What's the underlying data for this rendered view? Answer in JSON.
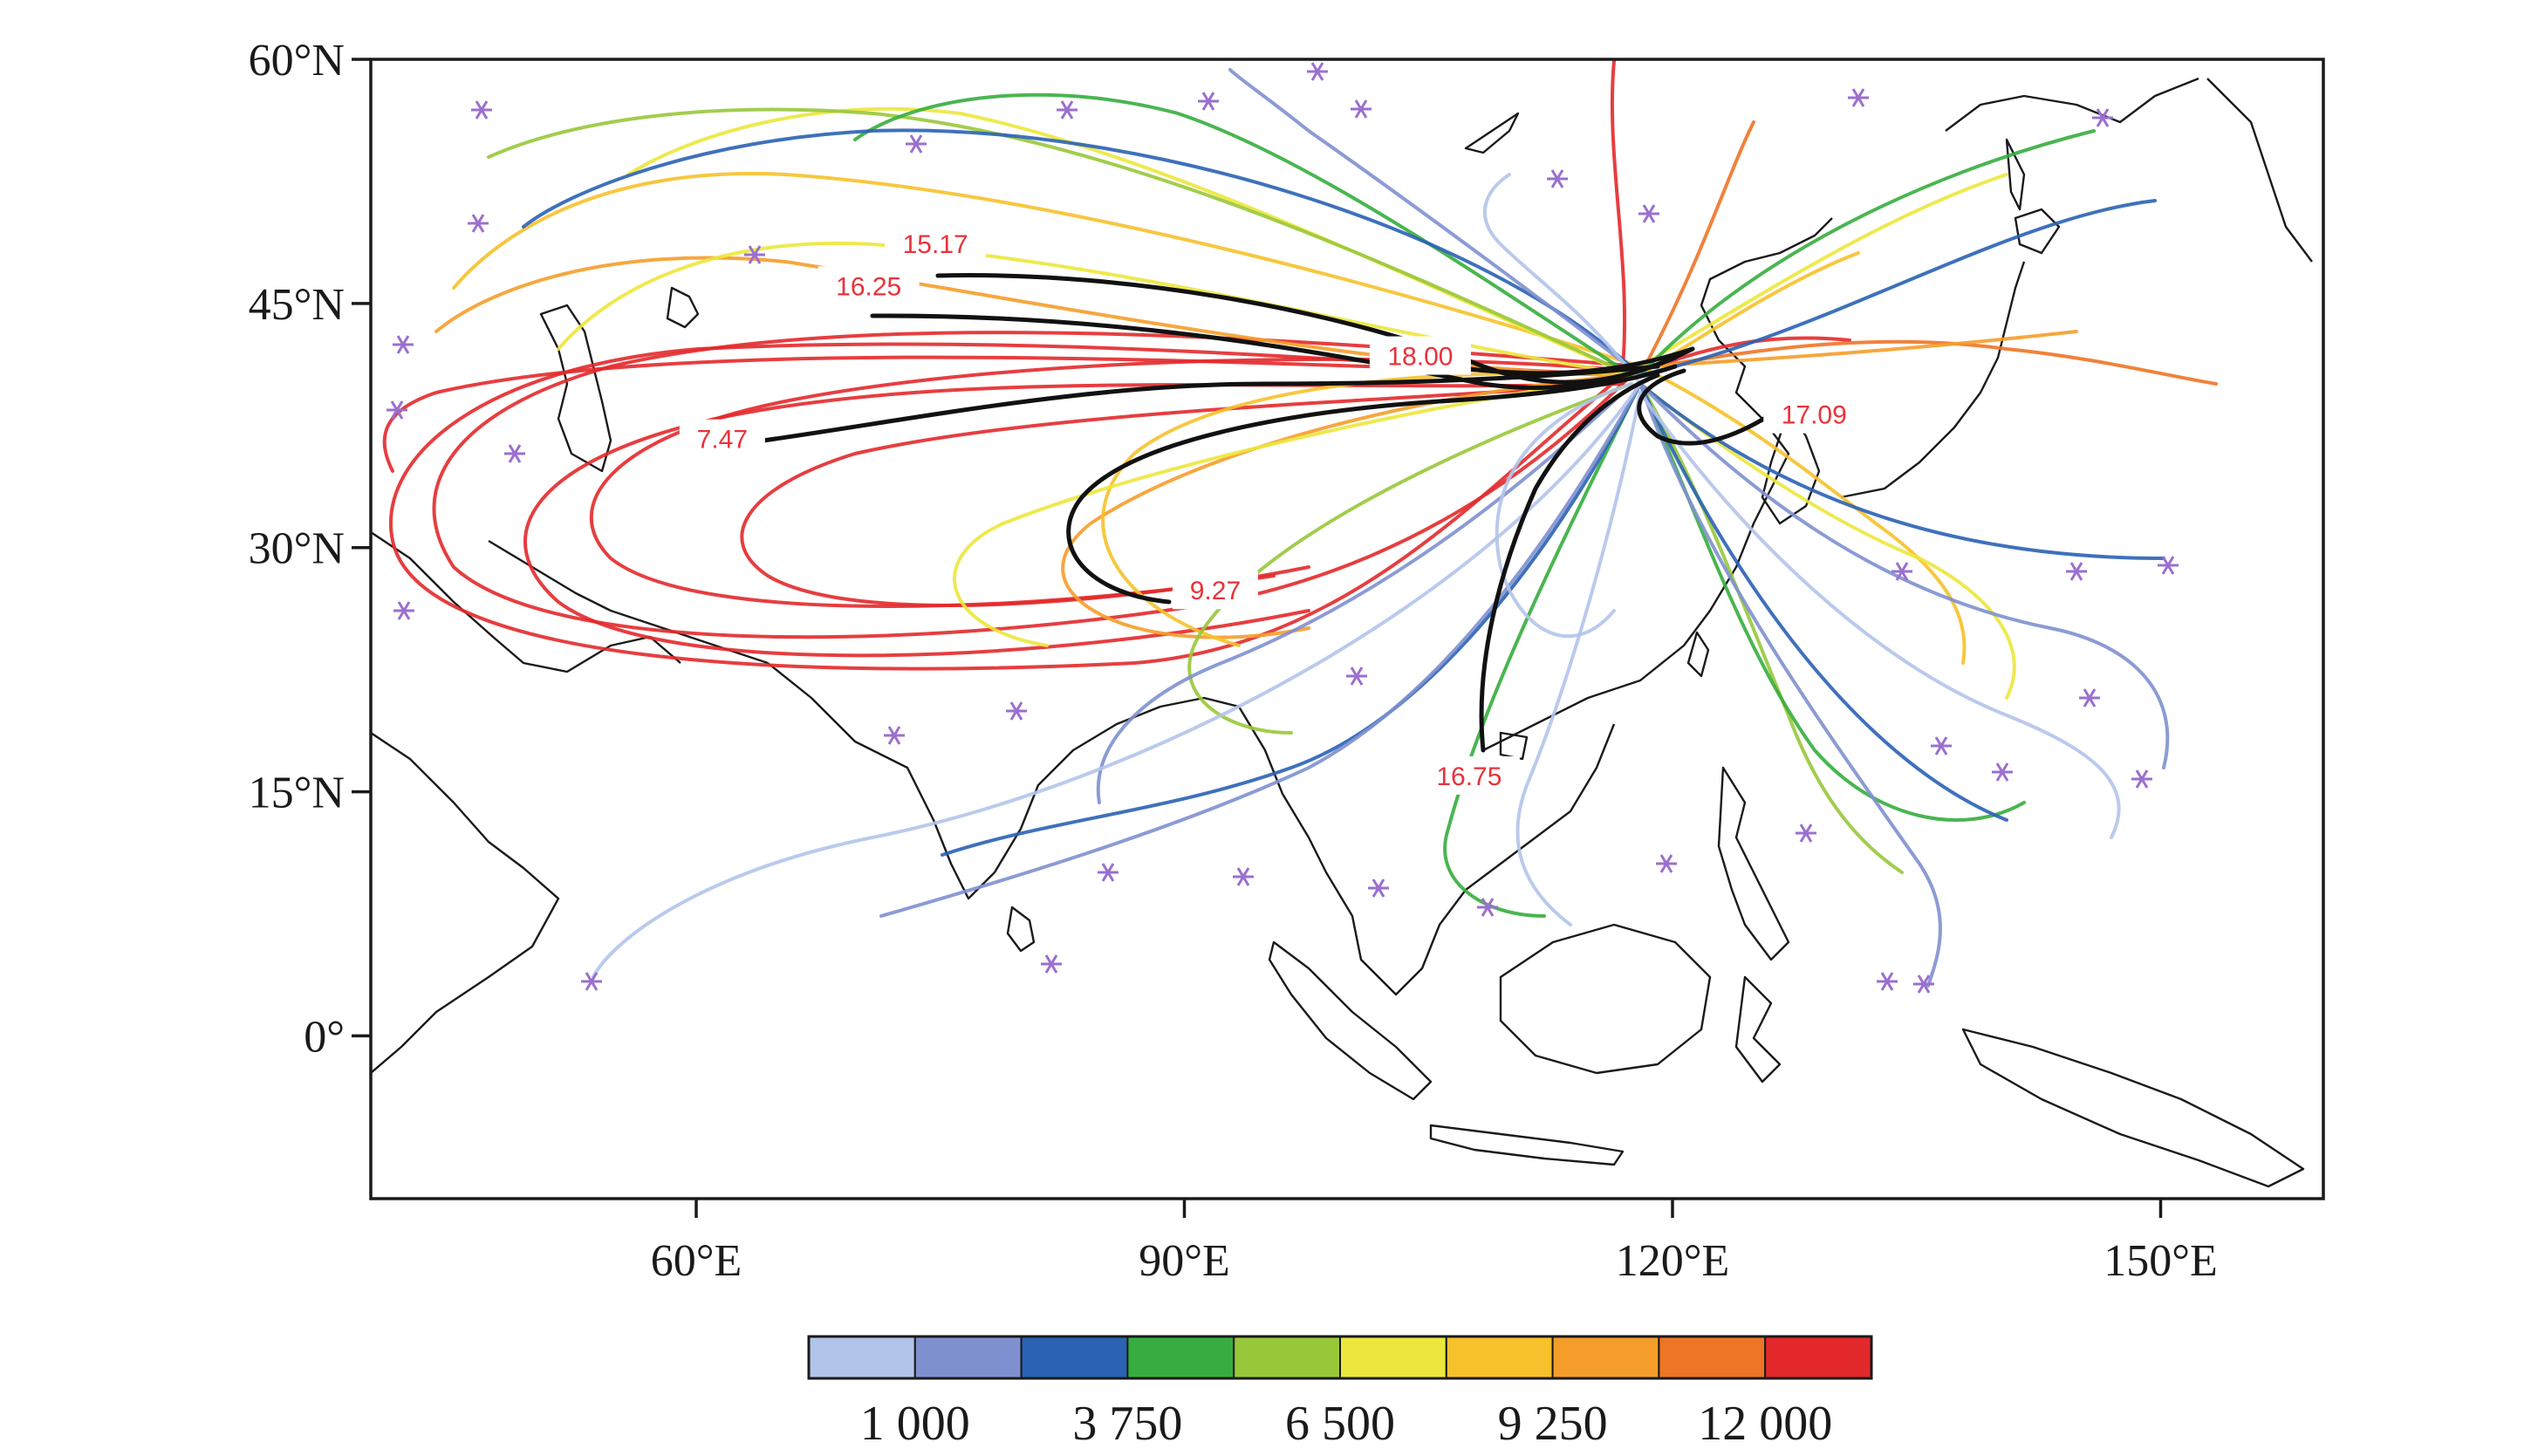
{
  "map": {
    "lat_labels": [
      "60°N",
      "45°N",
      "30°N",
      "15°N",
      "0°"
    ],
    "lon_labels": [
      "60°E",
      "90°E",
      "120°E",
      "150°E"
    ],
    "extent": {
      "lon_min": 40,
      "lon_max": 160,
      "lat_min": -10,
      "lat_max": 60
    },
    "annotations": [
      {
        "text": "15.17",
        "lon": 74.7,
        "lat": 48.7
      },
      {
        "text": "16.25",
        "lon": 70.6,
        "lat": 46.1
      },
      {
        "text": "18.00",
        "lon": 104.5,
        "lat": 41.8
      },
      {
        "text": "7.47",
        "lon": 61.6,
        "lat": 36.7
      },
      {
        "text": "17.09",
        "lon": 128.7,
        "lat": 38.2
      },
      {
        "text": "9.27",
        "lon": 91.9,
        "lat": 27.4
      },
      {
        "text": "16.75",
        "lon": 107.5,
        "lat": 16.0
      }
    ]
  },
  "legend": {
    "colors": [
      "#b3c4ea",
      "#7e90cf",
      "#2a62b4",
      "#36ad3e",
      "#98c83a",
      "#ece73c",
      "#f6c12b",
      "#f59d2a",
      "#ee7426",
      "#e3292b"
    ],
    "labels": [
      "1 000",
      "3 750",
      "6 500",
      "9 250",
      "12 000"
    ]
  }
}
